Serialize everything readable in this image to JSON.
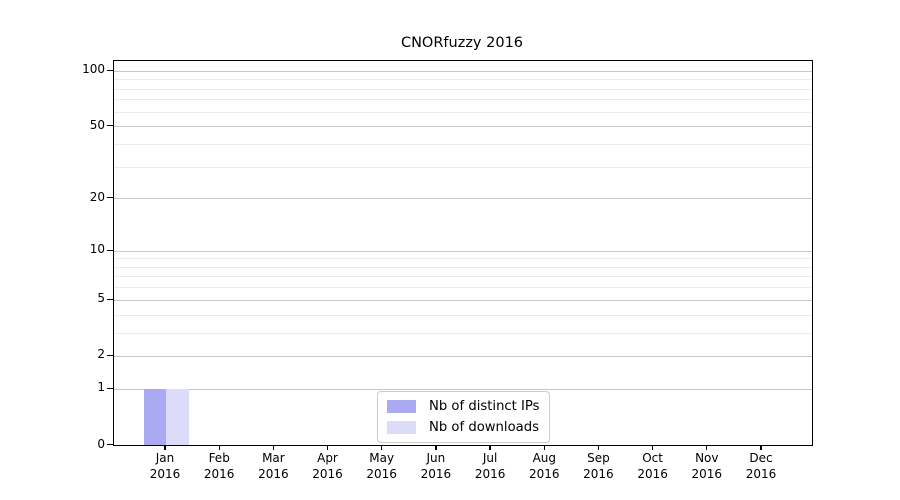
{
  "chart_data": {
    "type": "bar",
    "title": "CNORfuzzy 2016",
    "months": [
      "Jan",
      "Feb",
      "Mar",
      "Apr",
      "May",
      "Jun",
      "Jul",
      "Aug",
      "Sep",
      "Oct",
      "Nov",
      "Dec"
    ],
    "year": "2016",
    "series": [
      {
        "name": "Nb of distinct IPs",
        "color": "#a9aaf2",
        "values": [
          1,
          0,
          0,
          0,
          0,
          0,
          0,
          0,
          0,
          0,
          0,
          0
        ]
      },
      {
        "name": "Nb of downloads",
        "color": "#dcdcf8",
        "values": [
          1,
          0,
          0,
          0,
          0,
          0,
          0,
          0,
          0,
          0,
          0,
          0
        ]
      }
    ],
    "y_scale": "log10(value+1)",
    "y_ticks": [
      0,
      1,
      2,
      5,
      10,
      20,
      50,
      100
    ],
    "y_minor_gridlines": [
      3,
      4,
      6,
      7,
      8,
      9,
      30,
      40,
      60,
      70,
      80,
      90
    ],
    "ylim": [
      0,
      113
    ],
    "grid": "horizontal",
    "legend_position": "bottom-center"
  },
  "colors": {
    "background": "#ffffff",
    "spine": "#000000",
    "grid_major": "#c6c6c6",
    "grid_minor": "#ebebeb",
    "text": "#000000",
    "legend_border": "#cccccc",
    "legend_background": "#ffffff"
  }
}
